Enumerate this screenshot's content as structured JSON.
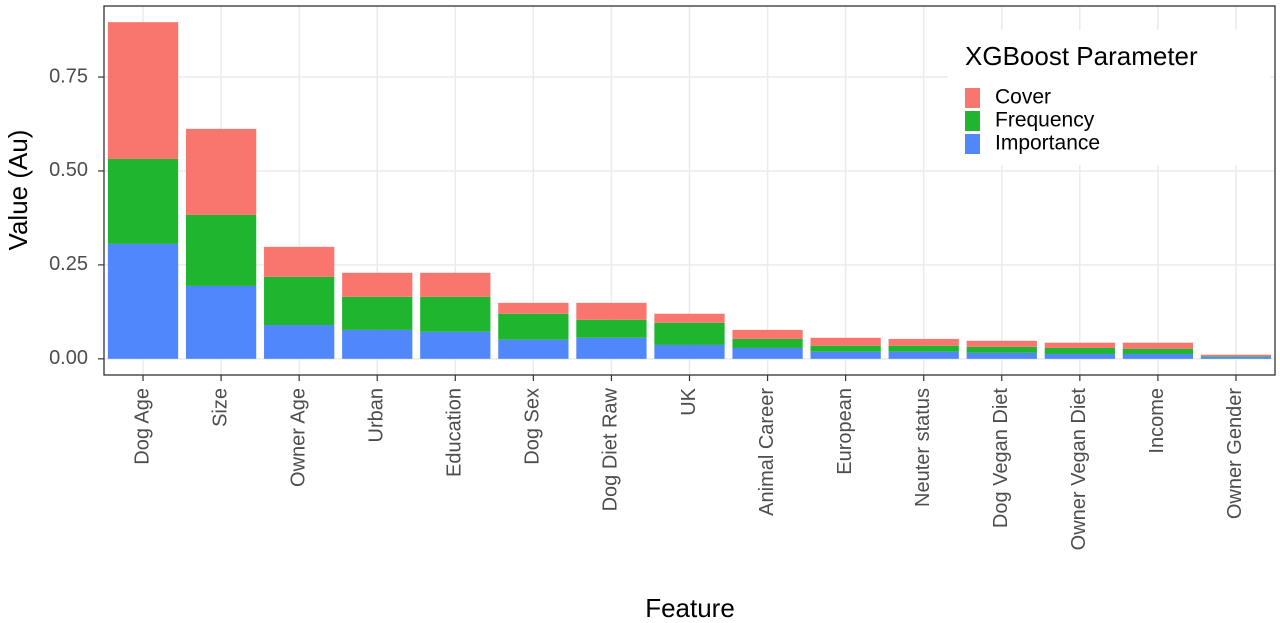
{
  "chart_data": {
    "type": "stacked_bar",
    "x_label": "Feature",
    "y_label": "Value (Au)",
    "categories": [
      "Dog Age",
      "Size",
      "Owner Age",
      "Urban",
      "Education",
      "Dog Sex",
      "Dog Diet Raw",
      "UK",
      "Animal Career",
      "European",
      "Neuter status",
      "Dog Vegan Diet",
      "Owner Vegan Diet",
      "Income",
      "Owner Gender"
    ],
    "series": [
      {
        "name": "Cover",
        "color": "#f8766d",
        "values": [
          0.364,
          0.229,
          0.08,
          0.064,
          0.064,
          0.029,
          0.045,
          0.024,
          0.024,
          0.021,
          0.018,
          0.016,
          0.014,
          0.016,
          0.004
        ]
      },
      {
        "name": "Frequency",
        "color": "#1fb52f",
        "values": [
          0.226,
          0.189,
          0.128,
          0.088,
          0.093,
          0.069,
          0.048,
          0.059,
          0.024,
          0.016,
          0.016,
          0.016,
          0.016,
          0.014,
          0.002
        ]
      },
      {
        "name": "Importance",
        "color": "#5088fc",
        "values": [
          0.306,
          0.194,
          0.09,
          0.077,
          0.072,
          0.051,
          0.056,
          0.037,
          0.029,
          0.019,
          0.019,
          0.016,
          0.013,
          0.013,
          0.005
        ]
      }
    ],
    "legend_title": "XGBoost Parameter",
    "legend_position": "top-right",
    "ylim": [
      -0.043,
      0.939
    ],
    "yticks": [
      {
        "value": 0,
        "label": "0.00"
      },
      0.25,
      {
        "value": 0.5,
        "label": "0.50"
      },
      0.75
    ],
    "grid": true
  }
}
